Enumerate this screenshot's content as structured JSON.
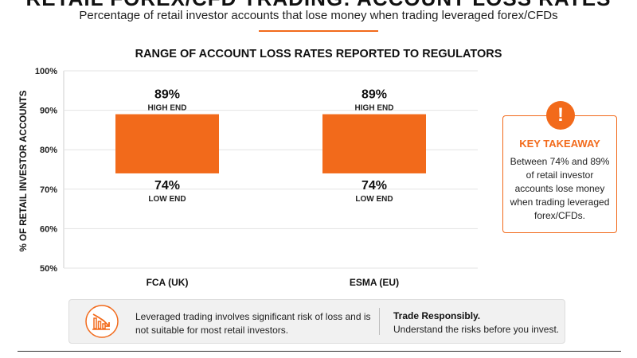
{
  "header": {
    "title": "RETAIL FOREX/CFD TRADING: ACCOUNT LOSS RATES",
    "subtitle": "Percentage of retail investor accounts that lose money when trading leveraged forex/CFDs"
  },
  "colors": {
    "accent": "#F26A1B",
    "text": "#1a1a1a",
    "grid": "#E3E3E3"
  },
  "chart_data": {
    "type": "bar",
    "subtype": "floating-range",
    "title": "RANGE OF ACCOUNT LOSS RATES REPORTED TO REGULATORS",
    "xlabel": "",
    "ylabel": "% OF RETAIL INVESTOR ACCOUNTS",
    "ylim": [
      50,
      100
    ],
    "yticks": [
      50,
      60,
      70,
      80,
      90,
      100
    ],
    "ytick_labels": [
      "50%",
      "60%",
      "70%",
      "80%",
      "90%",
      "100%"
    ],
    "grid": true,
    "categories": [
      "FCA (UK)",
      "ESMA (EU)"
    ],
    "low": [
      74,
      74
    ],
    "high": [
      89,
      89
    ],
    "high_labels": [
      "89%",
      "89%"
    ],
    "low_labels": [
      "74%",
      "74%"
    ],
    "high_caption": "HIGH END",
    "low_caption": "LOW END",
    "bar_color": "#F26A1B"
  },
  "callout": {
    "icon": "exclamation-icon",
    "heading": "KEY TAKEAWAY",
    "body": "Between 74% and 89% of retail investor accounts lose money when trading leveraged forex/CFDs."
  },
  "disclaimer": {
    "icon": "falling-chart-icon",
    "text": "Leveraged trading involves significant risk of loss and is not suitable for most retail investors.",
    "right_heading": "Trade Responsibly.",
    "right_body": "Understand the risks before you invest."
  }
}
